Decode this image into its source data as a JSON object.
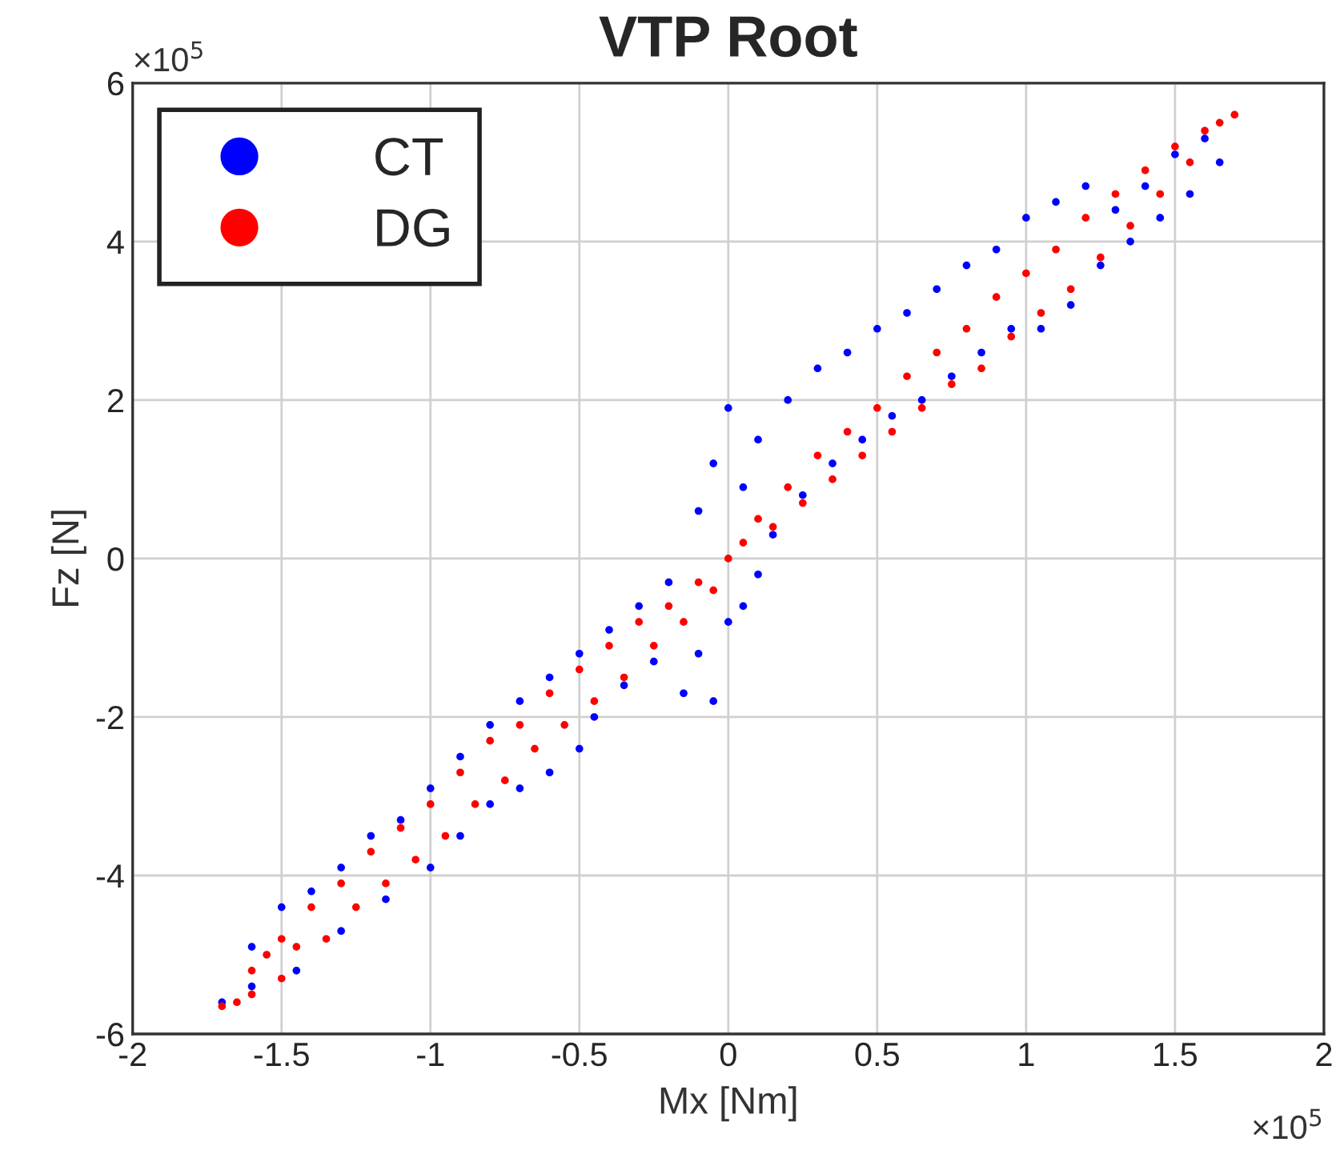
{
  "chart_data": {
    "type": "scatter",
    "title": "VTP Root",
    "xlabel": "Mx [Nm]",
    "ylabel": "Fz [N]",
    "xlim": [
      -2,
      2
    ],
    "xticks": [
      -2,
      -1.5,
      -1,
      -0.5,
      0,
      0.5,
      1,
      1.5,
      2
    ],
    "ylim": [
      -6,
      6
    ],
    "yticks": [
      -6,
      -4,
      -2,
      0,
      2,
      4,
      6
    ],
    "grid": true,
    "legend": "top left",
    "marker": "circle",
    "annotations": [
      "×10$^{5}$",
      "×10$^{5}$"
    ],
    "series": [
      {
        "name": "CT",
        "color": "#0000ff",
        "x": [
          -1.7,
          -1.6,
          -1.6,
          -1.5,
          -1.45,
          -1.4,
          -1.3,
          -1.3,
          -1.2,
          -1.15,
          -1.1,
          -1.0,
          -1.0,
          -0.9,
          -0.9,
          -0.8,
          -0.8,
          -0.7,
          -0.7,
          -0.6,
          -0.6,
          -0.5,
          -0.5,
          -0.45,
          -0.4,
          -0.35,
          -0.3,
          -0.25,
          -0.2,
          -0.15,
          -0.1,
          -0.1,
          -0.05,
          -0.05,
          0,
          0,
          0.05,
          0.05,
          0.1,
          0.1,
          0.15,
          0.2,
          0.25,
          0.3,
          0.35,
          0.4,
          0.45,
          0.5,
          0.55,
          0.6,
          0.65,
          0.7,
          0.75,
          0.8,
          0.85,
          0.9,
          0.95,
          1.0,
          1.05,
          1.1,
          1.15,
          1.2,
          1.25,
          1.3,
          1.35,
          1.4,
          1.45,
          1.5,
          1.55,
          1.6,
          1.65
        ],
        "values": [
          -5.6,
          -5.4,
          -4.9,
          -4.4,
          -5.2,
          -4.2,
          -4.7,
          -3.9,
          -3.5,
          -4.3,
          -3.3,
          -3.9,
          -2.9,
          -3.5,
          -2.5,
          -3.1,
          -2.1,
          -2.9,
          -1.8,
          -2.7,
          -1.5,
          -2.4,
          -1.2,
          -2.0,
          -0.9,
          -1.6,
          -0.6,
          -1.3,
          -0.3,
          -1.7,
          -1.2,
          0.6,
          -1.8,
          1.2,
          -0.8,
          1.9,
          0.9,
          -0.6,
          1.5,
          -0.2,
          0.3,
          2.0,
          0.8,
          2.4,
          1.2,
          2.6,
          1.5,
          2.9,
          1.8,
          3.1,
          2.0,
          3.4,
          2.3,
          3.7,
          2.6,
          3.9,
          2.9,
          4.3,
          2.9,
          4.5,
          3.2,
          4.7,
          3.7,
          4.4,
          4.0,
          4.7,
          4.3,
          5.1,
          4.6,
          5.3,
          5.0
        ]
      },
      {
        "name": "DG",
        "color": "#ff0000",
        "x": [
          -1.7,
          -1.65,
          -1.6,
          -1.6,
          -1.55,
          -1.5,
          -1.5,
          -1.45,
          -1.4,
          -1.35,
          -1.3,
          -1.25,
          -1.2,
          -1.15,
          -1.1,
          -1.05,
          -1.0,
          -0.95,
          -0.9,
          -0.85,
          -0.8,
          -0.75,
          -0.7,
          -0.65,
          -0.6,
          -0.55,
          -0.5,
          -0.45,
          -0.4,
          -0.35,
          -0.3,
          -0.25,
          -0.2,
          -0.15,
          -0.1,
          -0.05,
          0,
          0.05,
          0.1,
          0.15,
          0.2,
          0.25,
          0.3,
          0.35,
          0.4,
          0.45,
          0.5,
          0.55,
          0.6,
          0.65,
          0.7,
          0.75,
          0.8,
          0.85,
          0.9,
          0.95,
          1.0,
          1.05,
          1.1,
          1.15,
          1.2,
          1.25,
          1.3,
          1.35,
          1.4,
          1.45,
          1.5,
          1.55,
          1.6,
          1.65,
          1.7
        ],
        "values": [
          -5.65,
          -5.6,
          -5.2,
          -5.5,
          -5.0,
          -5.3,
          -4.8,
          -4.9,
          -4.4,
          -4.8,
          -4.1,
          -4.4,
          -3.7,
          -4.1,
          -3.4,
          -3.8,
          -3.1,
          -3.5,
          -2.7,
          -3.1,
          -2.3,
          -2.8,
          -2.1,
          -2.4,
          -1.7,
          -2.1,
          -1.4,
          -1.8,
          -1.1,
          -1.5,
          -0.8,
          -1.1,
          -0.6,
          -0.8,
          -0.3,
          -0.4,
          0,
          0.2,
          0.5,
          0.4,
          0.9,
          0.7,
          1.3,
          1.0,
          1.6,
          1.3,
          1.9,
          1.6,
          2.3,
          1.9,
          2.6,
          2.2,
          2.9,
          2.4,
          3.3,
          2.8,
          3.6,
          3.1,
          3.9,
          3.4,
          4.3,
          3.8,
          4.6,
          4.2,
          4.9,
          4.6,
          5.2,
          5.0,
          5.4,
          5.5,
          5.6
        ]
      }
    ]
  }
}
